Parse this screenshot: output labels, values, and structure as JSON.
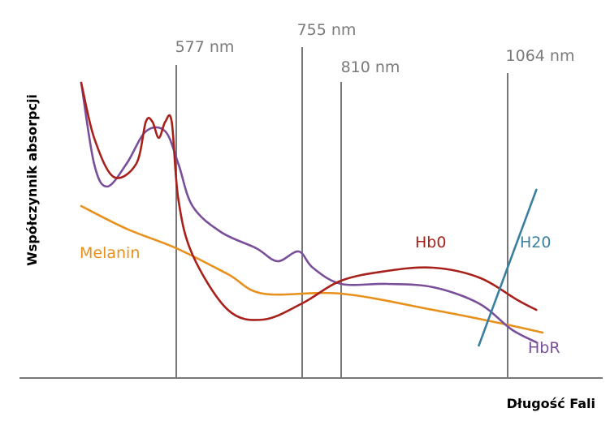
{
  "chart_data": {
    "type": "line",
    "xlabel": "Długość Fali",
    "ylabel": "Współczynnik absorpcji",
    "grid": false,
    "wavelength_markers": [
      {
        "value": 577,
        "label": "577 nm"
      },
      {
        "value": 755,
        "label": "755 nm"
      },
      {
        "value": 810,
        "label": "810 nm"
      },
      {
        "value": 1064,
        "label": "1064 nm"
      }
    ],
    "series": [
      {
        "name": "Hb0",
        "color": "#a8201a",
        "points": [
          [
            430,
            0.91
          ],
          [
            450,
            0.74
          ],
          [
            480,
            0.62
          ],
          [
            515,
            0.66
          ],
          [
            530,
            0.79
          ],
          [
            540,
            0.79
          ],
          [
            550,
            0.74
          ],
          [
            560,
            0.79
          ],
          [
            570,
            0.79
          ],
          [
            580,
            0.55
          ],
          [
            600,
            0.38
          ],
          [
            650,
            0.21
          ],
          [
            700,
            0.18
          ],
          [
            755,
            0.23
          ],
          [
            810,
            0.3
          ],
          [
            880,
            0.33
          ],
          [
            950,
            0.34
          ],
          [
            1020,
            0.31
          ],
          [
            1080,
            0.24
          ],
          [
            1110,
            0.21
          ]
        ]
      },
      {
        "name": "HbR",
        "color": "#7a4f9a",
        "points": [
          [
            430,
            0.91
          ],
          [
            450,
            0.66
          ],
          [
            470,
            0.59
          ],
          [
            500,
            0.66
          ],
          [
            530,
            0.76
          ],
          [
            560,
            0.76
          ],
          [
            580,
            0.66
          ],
          [
            600,
            0.53
          ],
          [
            640,
            0.45
          ],
          [
            690,
            0.4
          ],
          [
            720,
            0.36
          ],
          [
            750,
            0.39
          ],
          [
            770,
            0.34
          ],
          [
            810,
            0.29
          ],
          [
            880,
            0.29
          ],
          [
            950,
            0.28
          ],
          [
            1020,
            0.23
          ],
          [
            1070,
            0.15
          ],
          [
            1110,
            0.11
          ]
        ]
      },
      {
        "name": "Melanin",
        "color": "#e8901c",
        "points": [
          [
            430,
            0.53
          ],
          [
            500,
            0.46
          ],
          [
            577,
            0.4
          ],
          [
            650,
            0.32
          ],
          [
            700,
            0.26
          ],
          [
            810,
            0.26
          ],
          [
            950,
            0.21
          ],
          [
            1050,
            0.17
          ],
          [
            1120,
            0.14
          ]
        ]
      },
      {
        "name": "H20",
        "color": "#3b7fa0",
        "points": [
          [
            1020,
            0.1
          ],
          [
            1110,
            0.58
          ]
        ]
      }
    ]
  }
}
